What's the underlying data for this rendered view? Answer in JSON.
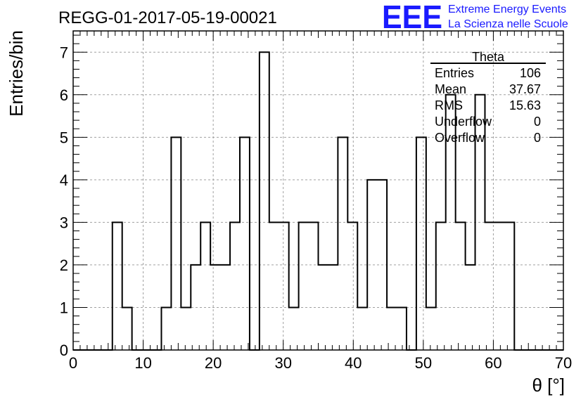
{
  "chart_data": {
    "type": "bar",
    "title": "REGG-01-2017-05-19-00021",
    "xlabel": "θ [°]",
    "ylabel": "Entries/bin",
    "xlim": [
      0,
      70
    ],
    "ylim": [
      0,
      7.5
    ],
    "x_ticks": [
      0,
      10,
      20,
      30,
      40,
      50,
      60,
      70
    ],
    "y_ticks": [
      0,
      1,
      2,
      3,
      4,
      5,
      6,
      7
    ],
    "grid": true,
    "bin_width": 1.4,
    "series": [
      {
        "bin_edges": [
          0,
          1.4,
          2.8,
          4.2,
          5.6,
          7,
          8.4,
          9.8,
          11.2,
          12.6,
          14,
          15.4,
          16.8,
          18.2,
          19.6,
          21,
          22.4,
          23.8,
          25.2,
          26.6,
          28,
          29.4,
          30.8,
          32.2,
          33.6,
          35,
          36.4,
          37.8,
          39.2,
          40.6,
          42,
          43.4,
          44.8,
          46.2,
          47.6,
          49,
          50.4,
          51.8,
          53.2,
          54.6,
          56,
          57.4,
          58.8,
          60.2,
          61.6,
          63,
          64.4,
          65.8,
          67.2,
          68.6,
          70
        ],
        "values": [
          0,
          0,
          0,
          0,
          3,
          1,
          0,
          0,
          0,
          1,
          5,
          1,
          2,
          3,
          2,
          2,
          3,
          5,
          0,
          7,
          3,
          3,
          1,
          3,
          3,
          2,
          2,
          5,
          3,
          1,
          4,
          4,
          1,
          1,
          0,
          5,
          1,
          3,
          6,
          3,
          2,
          6,
          3,
          3,
          3,
          0,
          0,
          0,
          0,
          0
        ]
      }
    ]
  },
  "stats_box": {
    "title": "Theta",
    "rows": [
      {
        "label": "Entries",
        "value": "106"
      },
      {
        "label": "Mean",
        "value": "37.67"
      },
      {
        "label": "RMS",
        "value": "15.63"
      },
      {
        "label": "Underflow",
        "value": "0"
      },
      {
        "label": "Overflow",
        "value": "0"
      }
    ]
  },
  "logo": {
    "mark": "EEE",
    "line1": "Extreme Energy Events",
    "line2": "La Scienza nelle Scuole",
    "color": "#1a1aff"
  },
  "colors": {
    "histogram_line": "#000000",
    "grid": "#a0a0a0"
  }
}
